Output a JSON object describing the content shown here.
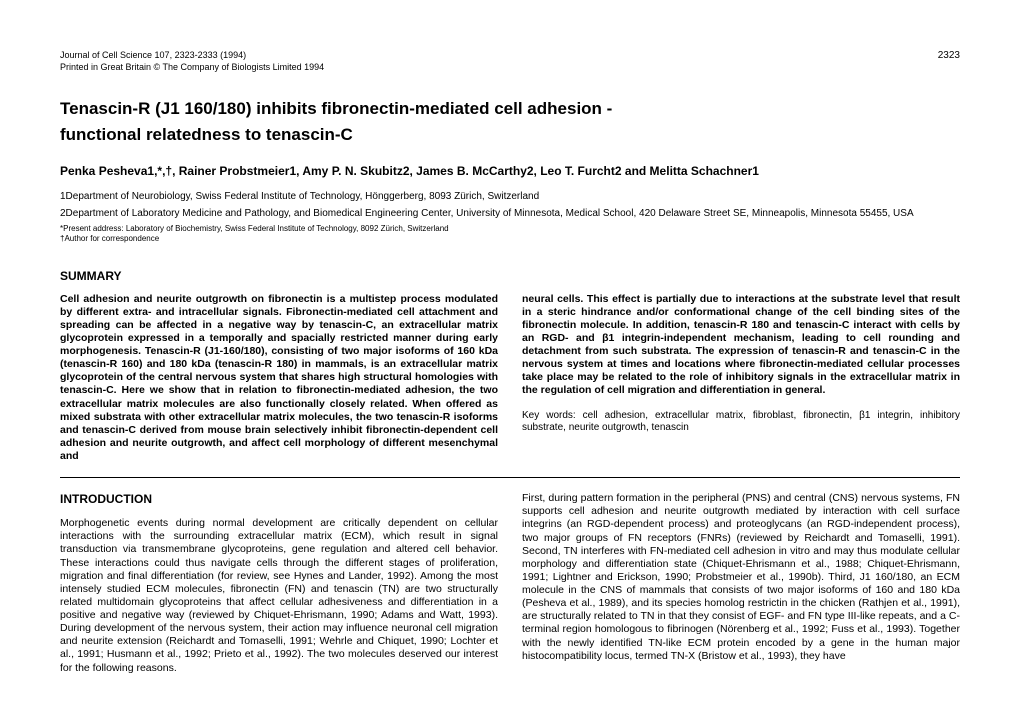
{
  "header": {
    "journal_line": "Journal of Cell Science 107, 2323-2333 (1994)",
    "copyright_line": "Printed in Great Britain © The Company of Biologists Limited 1994",
    "page_number": "2323"
  },
  "title_line1": "Tenascin-R (J1 160/180) inhibits fibronectin-mediated cell adhesion -",
  "title_line2": "functional relatedness to tenascin-C",
  "authors": "Penka Pesheva1,*,†, Rainer Probstmeier1, Amy P. N. Skubitz2, James B. McCarthy2, Leo T. Furcht2 and Melitta Schachner1",
  "affiliations": {
    "line1": "1Department of Neurobiology, Swiss Federal Institute of Technology, Hönggerberg, 8093 Zürich, Switzerland",
    "line2": "2Department of Laboratory Medicine and Pathology, and Biomedical Engineering Center, University of Minnesota, Medical School, 420 Delaware Street SE, Minneapolis, Minnesota 55455, USA"
  },
  "notes": {
    "present": "*Present address: Laboratory of Biochemistry, Swiss Federal Institute of Technology, 8092 Zürich, Switzerland",
    "corresponding": "†Author for correspondence"
  },
  "summary": {
    "header": "SUMMARY",
    "left": "Cell adhesion and neurite outgrowth on fibronectin is a multistep process modulated by different extra- and intracellular signals. Fibronectin-mediated cell attachment and spreading can be affected in a negative way by tenascin-C, an extracellular matrix glycoprotein expressed in a temporally and spacially restricted manner during early morphogenesis. Tenascin-R (J1-160/180), consisting of two major isoforms of 160 kDa (tenascin-R 160) and 180 kDa (tenascin-R 180) in mammals, is an extracellular matrix glycoprotein of the central nervous system that shares high structural homologies with tenascin-C. Here we show that in relation to fibronectin-mediated adhesion, the two extracellular matrix molecules are also functionally closely related. When offered as mixed substrata with other extracellular matrix molecules, the two tenascin-R isoforms and tenascin-C derived from mouse brain selectively inhibit fibronectin-dependent cell adhesion and neurite outgrowth, and affect cell morphology of different mesenchymal and",
    "right": "neural cells. This effect is partially due to interactions at the substrate level that result in a steric hindrance and/or conformational change of the cell binding sites of the fibronectin molecule. In addition, tenascin-R 180 and tenascin-C interact with cells by an RGD- and β1 integrin-independent mechanism, leading to cell rounding and detachment from such substrata. The expression of tenascin-R and tenascin-C in the nervous system at times and locations where fibronectin-mediated cellular processes take place may be related to the role of inhibitory signals in the extracellular matrix in the regulation of cell migration and differentiation in general.",
    "keywords": "Key words: cell adhesion, extracellular matrix, fibroblast, fibronectin, β1 integrin, inhibitory substrate, neurite outgrowth, tenascin"
  },
  "introduction": {
    "header": "INTRODUCTION",
    "left": "Morphogenetic events during normal development are critically dependent on cellular interactions with the surrounding extracellular matrix (ECM), which result in signal transduction via transmembrane glycoproteins, gene regulation and altered cell behavior. These interactions could thus navigate cells through the different stages of proliferation, migration and final differentiation (for review, see Hynes and Lander, 1992). Among the most intensely studied ECM molecules, fibronectin (FN) and tenascin (TN) are two structurally related multidomain glycoproteins that affect cellular adhesiveness and differentiation in a positive and negative way (reviewed by Chiquet-Ehrismann, 1990; Adams and Watt, 1993). During development of the nervous system, their action may influence neuronal cell migration and neurite extension (Reichardt and Tomaselli, 1991; Wehrle and Chiquet, 1990; Lochter et al., 1991; Husmann et al., 1992; Prieto et al., 1992). The two molecules deserved our interest for the following reasons.",
    "right": "First, during pattern formation in the peripheral (PNS) and central (CNS) nervous systems, FN supports cell adhesion and neurite outgrowth mediated by interaction with cell surface integrins (an RGD-dependent process) and proteoglycans (an RGD-independent process), two major groups of FN receptors (FNRs) (reviewed by Reichardt and Tomaselli, 1991). Second, TN interferes with FN-mediated cell adhesion in vitro and may thus modulate cellular morphology and differentiation state (Chiquet-Ehrismann et al., 1988; Chiquet-Ehrismann, 1991; Lightner and Erickson, 1990; Probstmeier et al., 1990b). Third, J1 160/180, an ECM molecule in the CNS of mammals that consists of two major isoforms of 160 and 180 kDa (Pesheva et al., 1989), and its species homolog restrictin in the chicken (Rathjen et al., 1991), are structurally related to TN in that they consist of EGF- and FN type III-like repeats, and a C-terminal region homologous to fibrinogen (Nörenberg et al., 1992; Fuss et al., 1993). Together with the newly identified TN-like ECM protein encoded by a gene in the human major histocompatibility locus, termed TN-X (Bristow et al., 1993), they have"
  }
}
